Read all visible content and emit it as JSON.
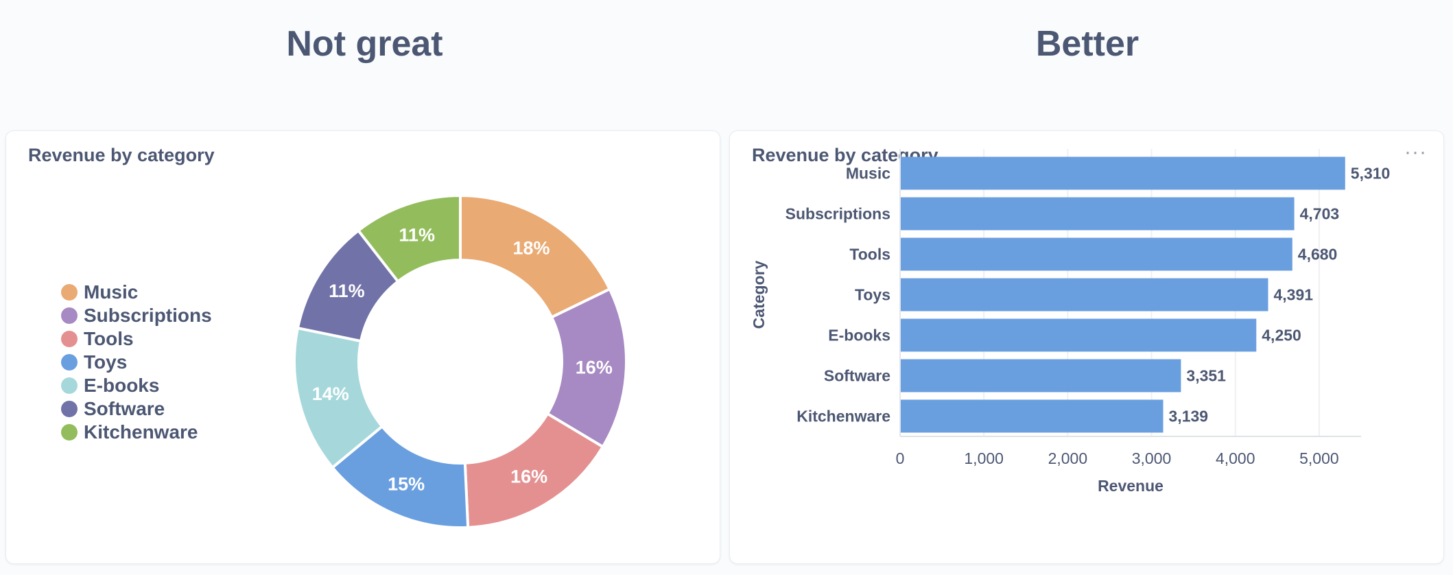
{
  "headings": {
    "left": "Not great",
    "right": "Better"
  },
  "card_left": {
    "title": "Revenue by category"
  },
  "card_right": {
    "title": "Revenue by category",
    "menu_icon": "more-horizontal-icon",
    "menu_glyph": "···"
  },
  "chart_data": [
    {
      "type": "pie",
      "title": "Revenue by category",
      "style": "donut",
      "categories": [
        "Music",
        "Subscriptions",
        "Tools",
        "Toys",
        "E-books",
        "Software",
        "Kitchenware"
      ],
      "values": [
        5310,
        4703,
        4680,
        4391,
        4250,
        3351,
        3139
      ],
      "labels": [
        "18%",
        "16%",
        "16%",
        "15%",
        "14%",
        "11%",
        "11%"
      ],
      "colors": [
        "#e9aa73",
        "#a789c3",
        "#e49090",
        "#6a9fdf",
        "#a6d8db",
        "#7172a8",
        "#93bd5c"
      ],
      "legend": "left"
    },
    {
      "type": "bar",
      "orientation": "horizontal",
      "title": "Revenue by category",
      "categories": [
        "Music",
        "Subscriptions",
        "Tools",
        "Toys",
        "E-books",
        "Software",
        "Kitchenware"
      ],
      "values": [
        5310,
        4703,
        4680,
        4391,
        4250,
        3351,
        3139
      ],
      "labels": [
        "5,310",
        "4,703",
        "4,680",
        "4,391",
        "4,250",
        "3,351",
        "3,139"
      ],
      "xticks": [
        0,
        1000,
        2000,
        3000,
        4000,
        5000
      ],
      "xtick_labels": [
        "0",
        "1,000",
        "2,000",
        "3,000",
        "4,000",
        "5,000"
      ],
      "xlim": [
        0,
        5500
      ],
      "xlabel": "Revenue",
      "ylabel": "Category",
      "bar_color": "#6a9fdf",
      "grid": true
    }
  ]
}
